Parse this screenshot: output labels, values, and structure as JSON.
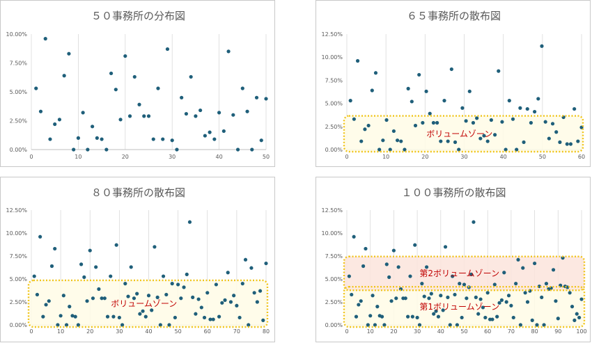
{
  "chart_data": [
    {
      "type": "scatter",
      "title": "５０事務所の分布図",
      "xlabel": "",
      "ylabel": "",
      "xlim": [
        0,
        50
      ],
      "ylim": [
        0,
        0.1
      ],
      "xticks": [
        "0",
        "10",
        "20",
        "30",
        "40",
        "50"
      ],
      "yticks": [
        "0.00%",
        "2.50%",
        "5.00%",
        "7.50%",
        "10.00%"
      ],
      "grid": "vertical",
      "color": "#1f5f7a",
      "zones": [],
      "x": [
        1,
        2,
        3,
        4,
        5,
        6,
        7,
        8,
        9,
        10,
        11,
        12,
        13,
        14,
        15,
        16,
        17,
        18,
        19,
        20,
        21,
        22,
        23,
        24,
        25,
        26,
        27,
        28,
        29,
        30,
        31,
        32,
        33,
        34,
        35,
        36,
        37,
        38,
        39,
        40,
        41,
        42,
        43,
        44,
        45,
        46,
        47,
        48,
        49,
        50
      ],
      "y": [
        0.053,
        0.033,
        0.096,
        0.009,
        0.022,
        0.026,
        0.064,
        0.083,
        0.0,
        0.01,
        0.032,
        0.0,
        0.02,
        0.01,
        0.009,
        0.0,
        0.066,
        0.052,
        0.026,
        0.081,
        0.029,
        0.063,
        0.039,
        0.029,
        0.029,
        0.009,
        0.053,
        0.009,
        0.087,
        0.008,
        0.0,
        0.045,
        0.031,
        0.063,
        0.029,
        0.034,
        0.012,
        0.015,
        0.009,
        0.032,
        0.016,
        0.085,
        0.03,
        0.0,
        0.053,
        0.033,
        0.0,
        0.045,
        0.008,
        0.044
      ]
    },
    {
      "type": "scatter",
      "title": "６５事務所の散布図",
      "xlabel": "",
      "ylabel": "",
      "xlim": [
        0,
        65
      ],
      "ylim": [
        0,
        0.125
      ],
      "xticks": [
        "0",
        "10",
        "20",
        "30",
        "40",
        "50",
        "60"
      ],
      "yticks": [
        "0.00%",
        "2.50%",
        "5.00%",
        "7.50%",
        "10.00%",
        "12.50%"
      ],
      "grid": "vertical",
      "color": "#1f5f7a",
      "zones": [
        {
          "label": "ボリュームゾーン",
          "ylo": 0.0,
          "yhi": 0.035,
          "fill": "#fffbe6"
        }
      ],
      "x": [
        1,
        2,
        3,
        4,
        5,
        6,
        7,
        8,
        9,
        10,
        11,
        12,
        13,
        14,
        15,
        16,
        17,
        18,
        19,
        20,
        21,
        22,
        23,
        24,
        25,
        26,
        27,
        28,
        29,
        30,
        31,
        32,
        33,
        34,
        35,
        36,
        37,
        38,
        39,
        40,
        41,
        42,
        43,
        44,
        45,
        46,
        47,
        48,
        49,
        50,
        51,
        52,
        53,
        54,
        55,
        56,
        57,
        58,
        59,
        60,
        61,
        62,
        63,
        64,
        65
      ],
      "y": [
        0.053,
        0.033,
        0.096,
        0.009,
        0.022,
        0.026,
        0.064,
        0.083,
        0.0,
        0.01,
        0.032,
        0.0,
        0.02,
        0.01,
        0.009,
        0.0,
        0.066,
        0.052,
        0.026,
        0.081,
        0.029,
        0.063,
        0.039,
        0.029,
        0.029,
        0.009,
        0.053,
        0.009,
        0.087,
        0.008,
        0.0,
        0.045,
        0.031,
        0.063,
        0.029,
        0.034,
        0.012,
        0.015,
        0.009,
        0.032,
        0.016,
        0.085,
        0.03,
        0.0,
        0.053,
        0.033,
        0.0,
        0.045,
        0.008,
        0.044,
        0.029,
        0.041,
        0.055,
        0.112,
        0.03,
        0.012,
        0.028,
        0.019,
        0.008,
        0.035,
        0.006,
        0.006,
        0.044,
        0.009,
        0.024
      ]
    },
    {
      "type": "scatter",
      "title": "８０事務所の散布図",
      "xlabel": "",
      "ylabel": "",
      "xlim": [
        0,
        80
      ],
      "ylim": [
        0,
        0.125
      ],
      "xticks": [
        "0",
        "10",
        "20",
        "30",
        "40",
        "50",
        "60",
        "70",
        "80"
      ],
      "yticks": [
        "0.00%",
        "2.50%",
        "5.00%",
        "7.50%",
        "10.00%",
        "12.50%"
      ],
      "grid": "vertical",
      "color": "#1f5f7a",
      "zones": [
        {
          "label": "ボリュームゾーン",
          "ylo": 0.0,
          "yhi": 0.047,
          "fill": "#fffbe6"
        }
      ],
      "x": [
        1,
        2,
        3,
        4,
        5,
        6,
        7,
        8,
        9,
        10,
        11,
        12,
        13,
        14,
        15,
        16,
        17,
        18,
        19,
        20,
        21,
        22,
        23,
        24,
        25,
        26,
        27,
        28,
        29,
        30,
        31,
        32,
        33,
        34,
        35,
        36,
        37,
        38,
        39,
        40,
        41,
        42,
        43,
        44,
        45,
        46,
        47,
        48,
        49,
        50,
        51,
        52,
        53,
        54,
        55,
        56,
        57,
        58,
        59,
        60,
        61,
        62,
        63,
        64,
        65,
        66,
        67,
        68,
        69,
        70,
        71,
        72,
        73,
        74,
        75,
        76,
        77,
        78,
        79,
        80
      ],
      "y": [
        0.053,
        0.033,
        0.096,
        0.009,
        0.022,
        0.026,
        0.064,
        0.083,
        0.0,
        0.01,
        0.032,
        0.0,
        0.02,
        0.01,
        0.009,
        0.0,
        0.066,
        0.052,
        0.026,
        0.081,
        0.029,
        0.063,
        0.039,
        0.029,
        0.029,
        0.009,
        0.053,
        0.009,
        0.087,
        0.008,
        0.0,
        0.045,
        0.031,
        0.063,
        0.029,
        0.034,
        0.012,
        0.015,
        0.009,
        0.032,
        0.016,
        0.085,
        0.03,
        0.0,
        0.053,
        0.033,
        0.0,
        0.045,
        0.008,
        0.044,
        0.029,
        0.041,
        0.055,
        0.112,
        0.03,
        0.012,
        0.028,
        0.019,
        0.008,
        0.035,
        0.006,
        0.006,
        0.044,
        0.009,
        0.024,
        0.027,
        0.057,
        0.025,
        0.032,
        0.021,
        0.008,
        0.045,
        0.071,
        0.0,
        0.062,
        0.035,
        0.025,
        0.037,
        0.005,
        0.067
      ]
    },
    {
      "type": "scatter",
      "title": "１００事務所の散布図",
      "xlabel": "",
      "ylabel": "",
      "xlim": [
        0,
        100
      ],
      "ylim": [
        0,
        0.125
      ],
      "xticks": [
        "0",
        "10",
        "20",
        "30",
        "40",
        "50",
        "60",
        "70",
        "80",
        "90",
        "100"
      ],
      "yticks": [
        "0.00%",
        "2.50%",
        "5.00%",
        "7.50%",
        "10.00%",
        "12.50%"
      ],
      "grid": "vertical",
      "color": "#1f5f7a",
      "zones": [
        {
          "label": "第1ボリュームゾーン",
          "ylo": 0.0,
          "yhi": 0.04,
          "fill": "#fffbe6"
        },
        {
          "label": "第2ボリュームゾーン",
          "ylo": 0.04,
          "yhi": 0.073,
          "fill": "#fbe4dc"
        }
      ],
      "x": [
        1,
        2,
        3,
        4,
        5,
        6,
        7,
        8,
        9,
        10,
        11,
        12,
        13,
        14,
        15,
        16,
        17,
        18,
        19,
        20,
        21,
        22,
        23,
        24,
        25,
        26,
        27,
        28,
        29,
        30,
        31,
        32,
        33,
        34,
        35,
        36,
        37,
        38,
        39,
        40,
        41,
        42,
        43,
        44,
        45,
        46,
        47,
        48,
        49,
        50,
        51,
        52,
        53,
        54,
        55,
        56,
        57,
        58,
        59,
        60,
        61,
        62,
        63,
        64,
        65,
        66,
        67,
        68,
        69,
        70,
        71,
        72,
        73,
        74,
        75,
        76,
        77,
        78,
        79,
        80,
        81,
        82,
        83,
        84,
        85,
        86,
        87,
        88,
        89,
        90,
        91,
        92,
        93,
        94,
        95,
        96,
        97,
        98,
        99,
        100
      ],
      "y": [
        0.053,
        0.033,
        0.096,
        0.009,
        0.022,
        0.026,
        0.064,
        0.083,
        0.0,
        0.01,
        0.032,
        0.0,
        0.02,
        0.01,
        0.009,
        0.0,
        0.066,
        0.052,
        0.026,
        0.081,
        0.029,
        0.063,
        0.039,
        0.029,
        0.029,
        0.009,
        0.053,
        0.009,
        0.087,
        0.008,
        0.0,
        0.045,
        0.031,
        0.063,
        0.029,
        0.034,
        0.012,
        0.015,
        0.009,
        0.032,
        0.016,
        0.085,
        0.03,
        0.0,
        0.053,
        0.033,
        0.0,
        0.045,
        0.008,
        0.044,
        0.029,
        0.041,
        0.055,
        0.112,
        0.03,
        0.012,
        0.028,
        0.019,
        0.008,
        0.035,
        0.006,
        0.006,
        0.044,
        0.009,
        0.024,
        0.027,
        0.057,
        0.025,
        0.032,
        0.021,
        0.008,
        0.045,
        0.071,
        0.0,
        0.062,
        0.035,
        0.025,
        0.037,
        0.005,
        0.067,
        0.0,
        0.042,
        0.03,
        0.0,
        0.045,
        0.039,
        0.04,
        0.06,
        0.026,
        0.007,
        0.043,
        0.073,
        0.042,
        0.041,
        0.035,
        0.02,
        0.005,
        0.012,
        0.008,
        0.028
      ]
    }
  ]
}
